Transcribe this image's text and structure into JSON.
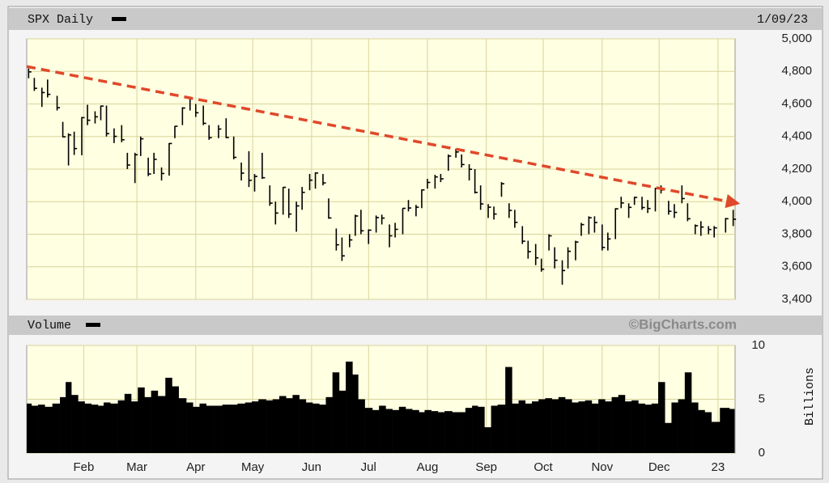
{
  "chart_data": [
    {
      "type": "ohlc",
      "title": "SPX Daily",
      "date": "1/09/23",
      "color": "#000000",
      "xlim": [
        2,
        375
      ],
      "ylim": [
        3400,
        5000
      ],
      "yticks": [
        {
          "value": 3400,
          "label": "3,400"
        },
        {
          "value": 3600,
          "label": "3,600"
        },
        {
          "value": 3800,
          "label": "3,800"
        },
        {
          "value": 4000,
          "label": "4,000"
        },
        {
          "value": 4200,
          "label": "4,200"
        },
        {
          "value": 4400,
          "label": "4,400"
        },
        {
          "value": 4600,
          "label": "4,600"
        },
        {
          "value": 4800,
          "label": "4,800"
        },
        {
          "value": 5000,
          "label": "5,000"
        }
      ],
      "grid": true,
      "x": [
        3,
        6,
        10,
        13,
        18,
        21,
        24,
        27,
        31,
        34,
        38,
        41,
        44,
        48,
        52,
        55,
        59,
        62,
        66,
        69,
        73,
        77,
        80,
        84,
        88,
        91,
        95,
        98,
        103,
        107,
        111,
        115,
        119,
        122,
        126,
        130,
        133,
        137,
        140,
        144,
        147,
        151,
        154,
        158,
        161,
        165,
        168,
        172,
        175,
        178,
        182,
        186,
        189,
        193,
        196,
        200,
        203,
        207,
        210,
        213,
        217,
        220,
        224,
        228,
        231,
        235,
        238,
        241,
        245,
        248,
        252,
        256,
        259,
        263,
        266,
        270,
        273,
        277,
        280,
        284,
        287,
        291,
        294,
        298,
        301,
        305,
        308,
        312,
        315,
        319,
        322,
        326,
        329,
        333,
        336,
        340,
        343,
        347,
        350,
        354,
        357,
        361,
        364,
        370,
        374
      ],
      "high": [
        4818,
        4760,
        4700,
        4750,
        4650,
        4490,
        4420,
        4430,
        4520,
        4595,
        4555,
        4590,
        4590,
        4450,
        4470,
        4300,
        4300,
        4400,
        4270,
        4300,
        4210,
        4360,
        4465,
        4580,
        4640,
        4600,
        4590,
        4470,
        4470,
        4512,
        4400,
        4240,
        4310,
        4170,
        4300,
        4100,
        4000,
        4090,
        4080,
        4000,
        4090,
        4170,
        4180,
        4170,
        4020,
        3835,
        3780,
        3800,
        3920,
        3950,
        3830,
        3915,
        3920,
        3860,
        3870,
        3960,
        4010,
        3980,
        4075,
        4140,
        4165,
        4170,
        4290,
        4325,
        4290,
        4230,
        4200,
        4100,
        3985,
        3970,
        4120,
        3990,
        3950,
        3850,
        3760,
        3740,
        3650,
        3800,
        3720,
        3640,
        3720,
        3760,
        3870,
        3910,
        3910,
        3860,
        3810,
        3960,
        4030,
        3990,
        4030,
        4030,
        4010,
        4085,
        4100,
        4005,
        3985,
        4100,
        3990,
        3860,
        3880,
        3850,
        3850,
        3900,
        3950
      ],
      "low": [
        4758,
        4680,
        4582,
        4640,
        4560,
        4395,
        4222,
        4287,
        4285,
        4470,
        4480,
        4500,
        4400,
        4360,
        4365,
        4200,
        4114,
        4280,
        4157,
        4170,
        4130,
        4160,
        4390,
        4470,
        4560,
        4520,
        4470,
        4380,
        4390,
        4390,
        4260,
        4130,
        4090,
        4062,
        4140,
        3975,
        3860,
        3920,
        3900,
        3815,
        3950,
        4070,
        4080,
        4100,
        3895,
        3700,
        3636,
        3720,
        3790,
        3800,
        3740,
        3810,
        3860,
        3720,
        3780,
        3800,
        3940,
        3910,
        3960,
        4080,
        4080,
        4120,
        4190,
        4270,
        4210,
        4130,
        4050,
        3950,
        3900,
        3890,
        4030,
        3900,
        3840,
        3740,
        3650,
        3610,
        3570,
        3700,
        3590,
        3490,
        3590,
        3640,
        3790,
        3800,
        3810,
        3700,
        3700,
        3770,
        3960,
        3900,
        3980,
        3950,
        3930,
        3940,
        4050,
        3920,
        3900,
        3990,
        3880,
        3800,
        3790,
        3800,
        3780,
        3810,
        3850
      ],
      "close": [
        4797,
        4696,
        4670,
        4659,
        4577,
        4398,
        4410,
        4326,
        4516,
        4500,
        4521,
        4587,
        4418,
        4401,
        4380,
        4225,
        4288,
        4386,
        4170,
        4260,
        4173,
        4357,
        4463,
        4575,
        4631,
        4546,
        4481,
        4393,
        4446,
        4394,
        4272,
        4175,
        4131,
        4155,
        4147,
        3991,
        3930,
        4088,
        3924,
        3974,
        4057,
        4132,
        4176,
        4115,
        3900,
        3735,
        3667,
        3765,
        3912,
        3821,
        3825,
        3902,
        3899,
        3790,
        3830,
        3959,
        3961,
        3966,
        4072,
        4118,
        4152,
        4140,
        4280,
        4305,
        4228,
        4199,
        4057,
        3986,
        3966,
        3924,
        4110,
        3946,
        3873,
        3757,
        3693,
        3655,
        3585,
        3790,
        3640,
        3577,
        3695,
        3752,
        3859,
        3901,
        3872,
        3719,
        3771,
        3956,
        3992,
        3965,
        4026,
        3964,
        3958,
        4080,
        4072,
        3941,
        3934,
        4019,
        3895,
        3852,
        3844,
        3829,
        3839,
        3895,
        3892
      ],
      "trend_line": {
        "color": "#e0482a",
        "x": [
          2,
          374
        ],
        "y": [
          4830,
          3995
        ]
      }
    },
    {
      "type": "bar",
      "title": "Volume",
      "source": "©BigCharts.com",
      "ylabel": "Billions",
      "color": "#000000",
      "xlim": [
        2,
        375
      ],
      "ylim": [
        0,
        10
      ],
      "yticks": [
        0,
        5,
        10
      ],
      "grid": true,
      "xticks": [
        {
          "value": 32,
          "label": "Feb"
        },
        {
          "value": 60,
          "label": "Mar"
        },
        {
          "value": 91,
          "label": "Apr"
        },
        {
          "value": 121,
          "label": "May"
        },
        {
          "value": 152,
          "label": "Jun"
        },
        {
          "value": 182,
          "label": "Jul"
        },
        {
          "value": 213,
          "label": "Aug"
        },
        {
          "value": 244,
          "label": "Sep"
        },
        {
          "value": 274,
          "label": "Oct"
        },
        {
          "value": 305,
          "label": "Nov"
        },
        {
          "value": 335,
          "label": "Dec"
        },
        {
          "value": 366,
          "label": "23"
        }
      ],
      "x": [
        3,
        6,
        10,
        13,
        18,
        21,
        24,
        27,
        31,
        34,
        38,
        41,
        44,
        48,
        52,
        55,
        59,
        62,
        66,
        69,
        73,
        77,
        80,
        84,
        88,
        91,
        95,
        98,
        103,
        107,
        111,
        115,
        119,
        122,
        126,
        130,
        133,
        137,
        140,
        144,
        147,
        151,
        154,
        158,
        161,
        165,
        168,
        172,
        175,
        178,
        182,
        186,
        189,
        193,
        196,
        200,
        203,
        207,
        210,
        213,
        217,
        220,
        224,
        228,
        231,
        235,
        238,
        241,
        245,
        248,
        252,
        256,
        259,
        263,
        266,
        270,
        273,
        277,
        280,
        284,
        287,
        291,
        294,
        298,
        301,
        305,
        308,
        312,
        315,
        319,
        322,
        326,
        329,
        333,
        336,
        340,
        343,
        347,
        350,
        354,
        357,
        361,
        364,
        370,
        374
      ],
      "values": [
        4.6,
        4.4,
        4.5,
        4.3,
        4.6,
        5.2,
        6.6,
        5.4,
        4.8,
        4.6,
        4.5,
        4.4,
        4.7,
        4.6,
        4.9,
        5.5,
        4.8,
        6.1,
        5.2,
        5.8,
        5.3,
        7.0,
        6.2,
        5.1,
        4.7,
        4.3,
        4.6,
        4.4,
        4.4,
        4.5,
        4.5,
        4.6,
        4.7,
        4.8,
        5.0,
        4.9,
        5.0,
        5.3,
        5.1,
        5.4,
        5.0,
        4.7,
        4.6,
        4.5,
        5.2,
        7.5,
        5.8,
        8.5,
        7.3,
        5.0,
        4.2,
        4.0,
        4.4,
        4.1,
        4.0,
        4.3,
        4.1,
        4.0,
        3.8,
        4.0,
        3.9,
        3.8,
        3.9,
        3.8,
        3.8,
        4.2,
        4.4,
        4.3,
        2.4,
        4.4,
        4.5,
        8.0,
        4.6,
        4.9,
        4.6,
        4.8,
        5.0,
        5.1,
        5.0,
        5.2,
        5.0,
        4.7,
        4.8,
        4.9,
        4.6,
        5.0,
        4.8,
        5.2,
        5.4,
        4.8,
        4.9,
        4.6,
        4.5,
        4.6,
        6.6,
        2.8,
        4.7,
        5.0,
        7.5,
        4.7,
        4.0,
        3.8,
        2.9,
        4.2,
        4.1
      ]
    }
  ]
}
